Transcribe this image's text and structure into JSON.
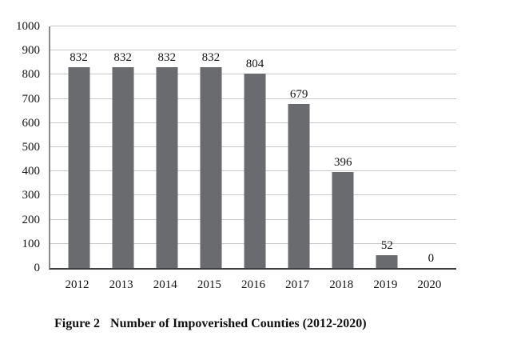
{
  "chart_data": {
    "type": "bar",
    "title": "",
    "categories": [
      "2012",
      "2013",
      "2014",
      "2015",
      "2016",
      "2017",
      "2018",
      "2019",
      "2020"
    ],
    "values": [
      832,
      832,
      832,
      832,
      804,
      679,
      396,
      52,
      0
    ],
    "xlabel": "",
    "ylabel": "",
    "ylim": [
      0,
      1000
    ],
    "ytick_step": 100,
    "yticks": [
      "0",
      "100",
      "200",
      "300",
      "400",
      "500",
      "600",
      "700",
      "800",
      "900",
      "1000"
    ],
    "grid": "horizontal",
    "legend": "none",
    "data_labels": "above-bars",
    "colors": {
      "bar": "#6a6b6f",
      "gridline": "#c7c7c7",
      "axis_left": "#8a8a8a",
      "axis_bottom": "#3f3f41",
      "text": "#141414"
    }
  },
  "caption": {
    "label": "Figure 2",
    "title": "Number of Impoverished Counties (2012-2020)"
  }
}
